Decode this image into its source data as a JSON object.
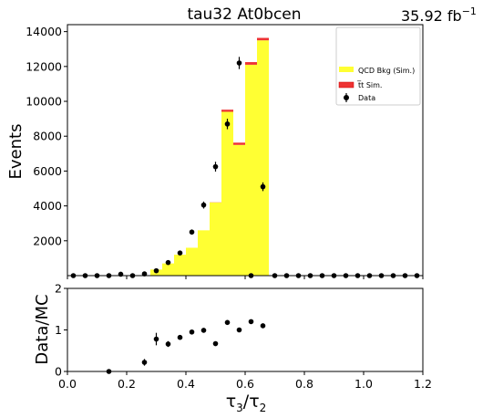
{
  "chart_data": {
    "type": "bar",
    "title": "tau32  At0bcen",
    "lumi_label": "35.92 fb",
    "lumi_exponent": "−1",
    "xlabel_main": "τ",
    "xlabel_sub1": "3",
    "xlabel_sub2": "2",
    "ylabel_top": "Events",
    "ylabel_bottom": "Data/MC",
    "xlim": [
      0,
      1.2
    ],
    "ylim_top": [
      0,
      14400
    ],
    "ylim_bottom": [
      0,
      2
    ],
    "x_ticks": [
      "0.0",
      "0.2",
      "0.4",
      "0.6",
      "0.8",
      "1.0",
      "1.2"
    ],
    "y_ticks_top": [
      "2000",
      "4000",
      "6000",
      "8000",
      "10000",
      "12000",
      "14000"
    ],
    "y_ticks_bottom": [
      "0",
      "1",
      "2"
    ],
    "bin_edges": [
      0.24,
      0.28,
      0.32,
      0.36,
      0.4,
      0.44,
      0.48,
      0.52,
      0.56,
      0.6,
      0.64,
      0.68
    ],
    "legend_position": "upper-right",
    "legend": [
      {
        "label": "QCD Bkg (Sim.)",
        "color": "#ffff33",
        "kind": "patch"
      },
      {
        "label": "t̅t Sim.",
        "color": "#ee3333",
        "kind": "patch"
      },
      {
        "label": "Data",
        "color": "#000000",
        "kind": "marker"
      }
    ],
    "series": [
      {
        "name": "QCD Bkg (Sim.)",
        "color": "#ffff33",
        "values": [
          0,
          350,
          700,
          1200,
          1600,
          2600,
          4200,
          9400,
          7500,
          12100,
          13500,
          4600
        ]
      },
      {
        "name": "t̅t Sim.",
        "color": "#ee3333",
        "values": [
          0,
          0,
          0,
          0,
          0,
          0,
          10,
          120,
          130,
          150,
          140,
          0
        ]
      }
    ],
    "data_points": {
      "x": [
        0.02,
        0.06,
        0.1,
        0.14,
        0.18,
        0.22,
        0.26,
        0.3,
        0.34,
        0.38,
        0.42,
        0.46,
        0.5,
        0.54,
        0.58,
        0.62,
        0.66,
        0.7,
        0.74,
        0.78,
        0.82,
        0.86,
        0.9,
        0.94,
        0.98,
        1.02,
        1.06,
        1.1,
        1.14,
        1.18
      ],
      "y": [
        0,
        0,
        0,
        0,
        80,
        0,
        100,
        280,
        750,
        1300,
        2500,
        4050,
        6250,
        8700,
        12200,
        0,
        5100,
        0,
        0,
        0,
        0,
        0,
        0,
        0,
        0,
        0,
        0,
        0,
        0,
        0
      ],
      "yerr": [
        0,
        0,
        0,
        0,
        0,
        0,
        0,
        60,
        90,
        110,
        150,
        200,
        280,
        300,
        350,
        0,
        250,
        0,
        0,
        0,
        0,
        0,
        0,
        0,
        0,
        0,
        0,
        0,
        0,
        0
      ]
    },
    "ratio_points": {
      "x": [
        0.14,
        0.26,
        0.3,
        0.34,
        0.38,
        0.42,
        0.46,
        0.5,
        0.54,
        0.58,
        0.62,
        0.66
      ],
      "y": [
        0.0,
        0.22,
        0.78,
        0.66,
        0.82,
        0.95,
        0.99,
        0.67,
        1.18,
        1.0,
        1.2,
        1.1
      ],
      "yerr": [
        0.0,
        0.08,
        0.15,
        0.07,
        0.05,
        0.04,
        0.04,
        0.03,
        0.04,
        0.03,
        0.03,
        0.05
      ]
    }
  }
}
